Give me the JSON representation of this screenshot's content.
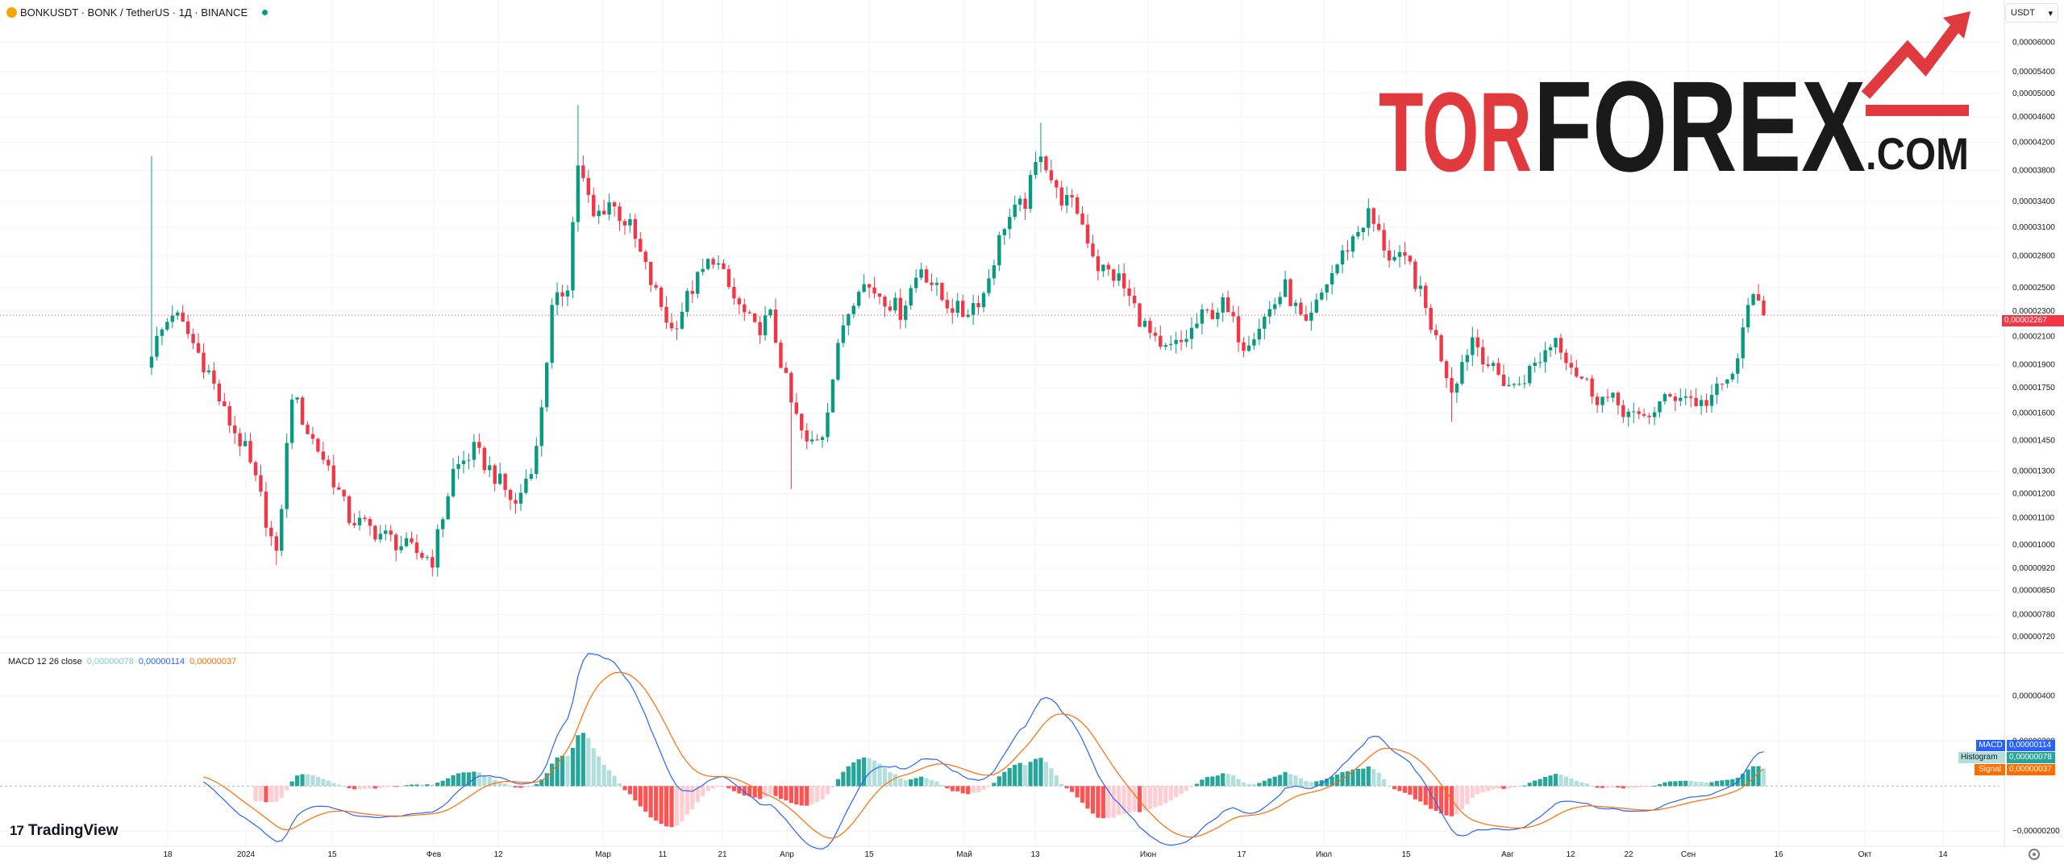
{
  "header": {
    "symbol_title": "BONKUSDT · BONK / TetherUS · 1Д · BINANCE",
    "currency": "USDT"
  },
  "watermark": {
    "text_left": "TOR",
    "text_right": "FOREX",
    "text_suffix": ".COM"
  },
  "macd_legend": {
    "name": "MACD 12 26 close",
    "histogram": "0,00000078",
    "macd": "0,00000114",
    "signal": "0,00000037"
  },
  "badges": {
    "price": "0,00002267",
    "macd_label": "MACD",
    "macd_value": "0,00000114",
    "hist_label": "Histogram",
    "hist_value": "0,00000078",
    "signal_label": "Signal",
    "signal_value": "0,00000037"
  },
  "branding": {
    "logo_mark": "17",
    "logo_text": "TradingView"
  },
  "colors": {
    "up": "#089981",
    "down": "#f23645",
    "macd_line": "#2962ff",
    "signal_line": "#ff6d00",
    "hist_up_strong": "#26a69a",
    "hist_up_weak": "#b2dfdb",
    "hist_down_strong": "#ff5252",
    "hist_down_weak": "#ffcdd2",
    "grid": "#f0f3fa",
    "axis_text": "#131722",
    "watermark_red": "#e03a3e",
    "watermark_dark": "#1a1a1a"
  },
  "chart_data": [
    {
      "type": "candlestick",
      "title": "BONKUSDT · BONK / TetherUS · 1Д · BINANCE",
      "y_scale": "log",
      "ylim": [
        6.9e-06,
        6.4e-06
      ],
      "y_ticks": [
        "0,00006000",
        "0,00005400",
        "0,00005000",
        "0,00004600",
        "0,00004200",
        "0,00003800",
        "0,00003400",
        "0,00003100",
        "0,00002800",
        "0,00002500",
        "0,00002300",
        "0,00002100",
        "0,00001900",
        "0,00001750",
        "0,00001600",
        "0,00001450",
        "0,00001300",
        "0,00001200",
        "0,00001100",
        "0,00001000",
        "0,00000920",
        "0,00000850",
        "0,00000780",
        "0,00000720"
      ],
      "x_ticks": [
        "18",
        "2024",
        "15",
        "Фев",
        "12",
        "Мар",
        "11",
        "21",
        "Апр",
        "15",
        "Май",
        "13",
        "Июн",
        "17",
        "Июл",
        "15",
        "Авг",
        "12",
        "22",
        "Сен",
        "16",
        "Окт",
        "14"
      ],
      "last_price": "0,00002267",
      "price_anchors": [
        [
          0,
          2e-05
        ],
        [
          4,
          2.3e-05
        ],
        [
          7,
          2.12e-05
        ],
        [
          11,
          1.85e-05
        ],
        [
          14,
          1.6e-05
        ],
        [
          18,
          1.4e-05
        ],
        [
          21,
          1.18e-05
        ],
        [
          24,
          9.5e-06
        ],
        [
          27,
          1.72e-05
        ],
        [
          30,
          1.5e-05
        ],
        [
          34,
          1.32e-05
        ],
        [
          38,
          1.1e-05
        ],
        [
          44,
          1.04e-05
        ],
        [
          50,
          9.8e-06
        ],
        [
          54,
          9.5e-06
        ],
        [
          58,
          1.3e-05
        ],
        [
          62,
          1.4e-05
        ],
        [
          66,
          1.28e-05
        ],
        [
          70,
          1.15e-05
        ],
        [
          74,
          1.4e-05
        ],
        [
          77,
          2.3e-05
        ],
        [
          80,
          2.55e-05
        ],
        [
          82,
          3.9e-05
        ],
        [
          85,
          3.2e-05
        ],
        [
          88,
          3.4e-05
        ],
        [
          92,
          3.1e-05
        ],
        [
          96,
          2.55e-05
        ],
        [
          100,
          2.15e-05
        ],
        [
          104,
          2.5e-05
        ],
        [
          108,
          2.8e-05
        ],
        [
          112,
          2.4e-05
        ],
        [
          116,
          2.15e-05
        ],
        [
          119,
          2.25e-05
        ],
        [
          123,
          1.65e-05
        ],
        [
          126,
          1.42e-05
        ],
        [
          129,
          1.5e-05
        ],
        [
          133,
          2.2e-05
        ],
        [
          136,
          2.55e-05
        ],
        [
          140,
          2.45e-05
        ],
        [
          144,
          2.3e-05
        ],
        [
          148,
          2.7e-05
        ],
        [
          152,
          2.4e-05
        ],
        [
          156,
          2.28e-05
        ],
        [
          160,
          2.45e-05
        ],
        [
          164,
          3.15e-05
        ],
        [
          168,
          3.4e-05
        ],
        [
          171,
          4.1e-05
        ],
        [
          174,
          3.5e-05
        ],
        [
          178,
          3.3e-05
        ],
        [
          182,
          2.7e-05
        ],
        [
          186,
          2.58e-05
        ],
        [
          190,
          2.25e-05
        ],
        [
          194,
          1.98e-05
        ],
        [
          198,
          2.05e-05
        ],
        [
          202,
          2.25e-05
        ],
        [
          206,
          2.35e-05
        ],
        [
          210,
          2.05e-05
        ],
        [
          214,
          2.25e-05
        ],
        [
          218,
          2.5e-05
        ],
        [
          222,
          2.15e-05
        ],
        [
          226,
          2.55e-05
        ],
        [
          230,
          2.9e-05
        ],
        [
          234,
          3.25e-05
        ],
        [
          238,
          2.8e-05
        ],
        [
          242,
          2.7e-05
        ],
        [
          246,
          2.2e-05
        ],
        [
          250,
          1.75e-05
        ],
        [
          254,
          2.1e-05
        ],
        [
          258,
          1.85e-05
        ],
        [
          262,
          1.75e-05
        ],
        [
          266,
          1.9e-05
        ],
        [
          270,
          2.1e-05
        ],
        [
          274,
          1.85e-05
        ],
        [
          278,
          1.7e-05
        ],
        [
          282,
          1.65e-05
        ],
        [
          286,
          1.55e-05
        ],
        [
          290,
          1.65e-05
        ],
        [
          294,
          1.72e-05
        ],
        [
          298,
          1.65e-05
        ],
        [
          302,
          1.75e-05
        ],
        [
          305,
          1.9e-05
        ],
        [
          307,
          2.42e-05
        ],
        [
          310,
          2.27e-05
        ]
      ]
    },
    {
      "type": "macd",
      "title": "MACD 12 26 close",
      "y_ticks": [
        "0,00000400",
        "0,00000200",
        "−0,00000200"
      ],
      "series": [
        {
          "name": "MACD",
          "color": "#2962ff"
        },
        {
          "name": "Histogram"
        },
        {
          "name": "Signal",
          "color": "#ff6d00"
        }
      ],
      "last_values": {
        "macd": "0,00000114",
        "histogram": "0,00000078",
        "signal": "0,00000037"
      }
    }
  ]
}
